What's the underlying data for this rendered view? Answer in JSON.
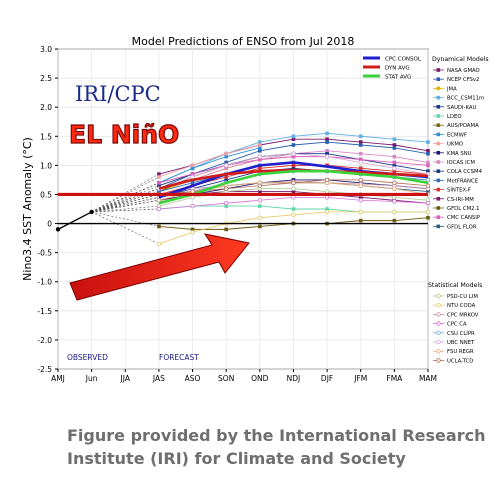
{
  "chart_data": {
    "type": "line",
    "title": "Model Predictions of ENSO from Jul 2018",
    "ylabel": "Nino3.4 SST Anomaly (°C)",
    "xlabel": "",
    "categories": [
      "AMJ",
      "Jun",
      "JJA",
      "JAS",
      "ASO",
      "SON",
      "OND",
      "NDJ",
      "DJF",
      "JFM",
      "FMA",
      "MAM"
    ],
    "ylim": [
      -2.5,
      3.0
    ],
    "yticks": [
      -2.5,
      -2.0,
      -1.5,
      -1.0,
      -0.5,
      0,
      0.5,
      1.0,
      1.5,
      2.0,
      2.5,
      3.0
    ],
    "ytick_labels": [
      "-2.5",
      "-2.0",
      "-1.5",
      "-1.0",
      "-0.5",
      "0",
      "0.5",
      "1.0",
      "1.5",
      "2.0",
      "2.5",
      "3.0"
    ],
    "observed": {
      "x": [
        "AMJ",
        "Jun"
      ],
      "values": [
        -0.1,
        0.2
      ]
    },
    "observed_label": "OBSERVED",
    "forecast_label": "FORECAST",
    "logo_text": "IRI/CPC",
    "banner_text": "EL NiñO",
    "threshold_value": 0.5,
    "zero_value": 0,
    "legend_avg": [
      {
        "name": "CPC CONSOL",
        "color": "#1f1fd0"
      },
      {
        "name": "DYN AVG",
        "color": "#d21c1c"
      },
      {
        "name": "STAT AVG",
        "color": "#3ad43a"
      }
    ],
    "series_avg": [
      {
        "name": "CPC CONSOL",
        "color": "#1f1fd0",
        "values": [
          null,
          null,
          null,
          0.45,
          0.65,
          0.85,
          1.0,
          1.05,
          0.98,
          0.9,
          0.85,
          0.8
        ]
      },
      {
        "name": "DYN AVG",
        "color": "#d21c1c",
        "values": [
          null,
          null,
          null,
          0.6,
          0.75,
          0.85,
          0.9,
          0.92,
          0.9,
          0.88,
          0.85,
          0.82
        ]
      },
      {
        "name": "STAT AVG",
        "color": "#3ad43a",
        "values": [
          null,
          null,
          null,
          0.35,
          0.5,
          0.7,
          0.85,
          0.9,
          0.9,
          0.85,
          0.8,
          0.7
        ]
      }
    ],
    "dynamical_header": "Dynamical Models",
    "dynamical": [
      {
        "name": "NASA GMAO",
        "color": "#7a1a6e",
        "values": [
          null,
          null,
          null,
          0.85,
          1.0,
          1.2,
          1.35,
          1.45,
          1.45,
          1.4,
          1.35,
          1.25
        ]
      },
      {
        "name": "NCEP CFSv2",
        "color": "#2a5fb0",
        "values": [
          null,
          null,
          null,
          0.6,
          0.85,
          1.05,
          1.25,
          1.35,
          1.4,
          1.35,
          1.3,
          1.2
        ]
      },
      {
        "name": "JMA",
        "color": "#e6b800",
        "values": [
          null,
          null,
          null,
          0.55,
          0.75,
          0.95,
          1.1,
          1.15,
          null,
          null,
          null,
          null
        ]
      },
      {
        "name": "BCC_CSM11m",
        "color": "#5fb0e8",
        "values": [
          null,
          null,
          null,
          0.7,
          0.95,
          1.2,
          1.4,
          1.5,
          1.55,
          1.5,
          1.45,
          1.4
        ]
      },
      {
        "name": "SAUDI-KAU",
        "color": "#1a3a8a",
        "values": [
          null,
          null,
          null,
          0.45,
          0.6,
          0.75,
          0.9,
          0.95,
          0.9,
          0.85,
          0.8,
          0.75
        ]
      },
      {
        "name": "LDEO",
        "color": "#60d8a8",
        "values": [
          null,
          null,
          null,
          0.25,
          0.3,
          0.3,
          0.3,
          0.25,
          0.25,
          0.2,
          0.2,
          0.2
        ]
      },
      {
        "name": "AUS/POAMA",
        "color": "#7a6a10",
        "values": [
          null,
          null,
          null,
          0.55,
          0.8,
          1.0,
          1.15,
          1.2,
          null,
          null,
          null,
          null
        ]
      },
      {
        "name": "ECMWF",
        "color": "#2a8fd8",
        "values": [
          null,
          null,
          null,
          0.7,
          0.95,
          1.15,
          1.3,
          null,
          null,
          null,
          null,
          null
        ]
      },
      {
        "name": "UKMO",
        "color": "#f2a0a0",
        "values": [
          null,
          null,
          null,
          0.8,
          1.0,
          1.2,
          1.35,
          null,
          null,
          null,
          null,
          null
        ]
      },
      {
        "name": "KMA SNU",
        "color": "#1a1a70",
        "values": [
          null,
          null,
          null,
          0.4,
          0.5,
          0.6,
          0.7,
          0.75,
          0.75,
          0.7,
          0.65,
          0.6
        ]
      },
      {
        "name": "IOCAS ICM",
        "color": "#d88ac8",
        "values": [
          null,
          null,
          null,
          0.6,
          0.75,
          0.95,
          1.1,
          1.2,
          1.25,
          1.2,
          1.15,
          1.05
        ]
      },
      {
        "name": "COLA CCSM4",
        "color": "#1a3a8a",
        "values": [
          null,
          null,
          null,
          0.65,
          0.85,
          1.0,
          1.15,
          1.2,
          1.2,
          1.1,
          1.0,
          0.9
        ]
      },
      {
        "name": "MetFRANCE",
        "color": "#2a70c0",
        "values": [
          null,
          null,
          null,
          0.55,
          0.7,
          0.85,
          1.0,
          1.05,
          null,
          null,
          null,
          null
        ]
      },
      {
        "name": "SINTEX-F",
        "color": "#d83030",
        "values": [
          null,
          null,
          null,
          0.5,
          0.65,
          0.8,
          0.95,
          1.0,
          1.0,
          0.95,
          0.9,
          0.85
        ]
      },
      {
        "name": "CS-IRI-MM",
        "color": "#7a1a6e",
        "values": [
          null,
          null,
          null,
          0.4,
          0.5,
          0.55,
          0.55,
          0.55,
          0.5,
          0.45,
          0.4,
          0.35
        ]
      },
      {
        "name": "GFDL CM2.1",
        "color": "#6a5a10",
        "values": [
          null,
          null,
          null,
          -0.05,
          -0.1,
          -0.1,
          -0.05,
          0.0,
          0.0,
          0.05,
          0.05,
          0.1
        ]
      },
      {
        "name": "CMC CANSIP",
        "color": "#e060c0",
        "values": [
          null,
          null,
          null,
          0.7,
          0.85,
          1.0,
          1.1,
          1.15,
          1.15,
          1.1,
          1.05,
          1.0
        ]
      },
      {
        "name": "GFDL FLOR",
        "color": "#2a5f80",
        "values": [
          null,
          null,
          null,
          0.45,
          0.55,
          0.65,
          0.7,
          0.7,
          0.7,
          0.65,
          0.6,
          0.55
        ]
      }
    ],
    "statistical_header": "Statistical Models",
    "statistical": [
      {
        "name": "PSD-CU LIM",
        "color": "#a8c890",
        "values": [
          null,
          null,
          null,
          0.3,
          0.45,
          0.55,
          0.6,
          0.6,
          0.55,
          0.5,
          0.45,
          0.4
        ]
      },
      {
        "name": "NTU CODA",
        "color": "#e8c860",
        "values": [
          null,
          null,
          null,
          -0.35,
          -0.15,
          0.0,
          0.1,
          0.15,
          0.2,
          0.2,
          0.2,
          0.2
        ]
      },
      {
        "name": "CPC MRKOV",
        "color": "#c890a8",
        "values": [
          null,
          null,
          null,
          0.5,
          0.6,
          0.65,
          0.7,
          0.72,
          0.7,
          0.68,
          0.65,
          0.6
        ]
      },
      {
        "name": "CPC CA",
        "color": "#d870d8",
        "values": [
          null,
          null,
          null,
          0.25,
          0.3,
          0.35,
          0.4,
          0.45,
          0.45,
          0.4,
          0.38,
          0.35
        ]
      },
      {
        "name": "CSU CLIPR",
        "color": "#70a8d8",
        "values": [
          null,
          null,
          null,
          0.45,
          0.55,
          0.7,
          0.85,
          0.9,
          0.9,
          0.85,
          0.8,
          0.75
        ]
      },
      {
        "name": "UBC NNET",
        "color": "#d8a8d8",
        "values": [
          null,
          null,
          null,
          0.6,
          0.8,
          1.0,
          1.15,
          1.2,
          1.15,
          1.05,
          0.95,
          0.85
        ]
      },
      {
        "name": "FSU REGR",
        "color": "#e8a870",
        "values": [
          null,
          null,
          null,
          0.4,
          0.55,
          0.65,
          0.7,
          0.7,
          0.7,
          0.65,
          0.6,
          0.5
        ]
      },
      {
        "name": "UCLA-TCD",
        "color": "#b06a50",
        "values": [
          null,
          null,
          null,
          0.5,
          0.55,
          0.6,
          0.65,
          0.7,
          0.75,
          0.75,
          0.7,
          0.65
        ]
      }
    ]
  },
  "caption": {
    "line1": "Figure provided by the International Research",
    "line2": "Institute (IRI) for Climate and Society"
  }
}
